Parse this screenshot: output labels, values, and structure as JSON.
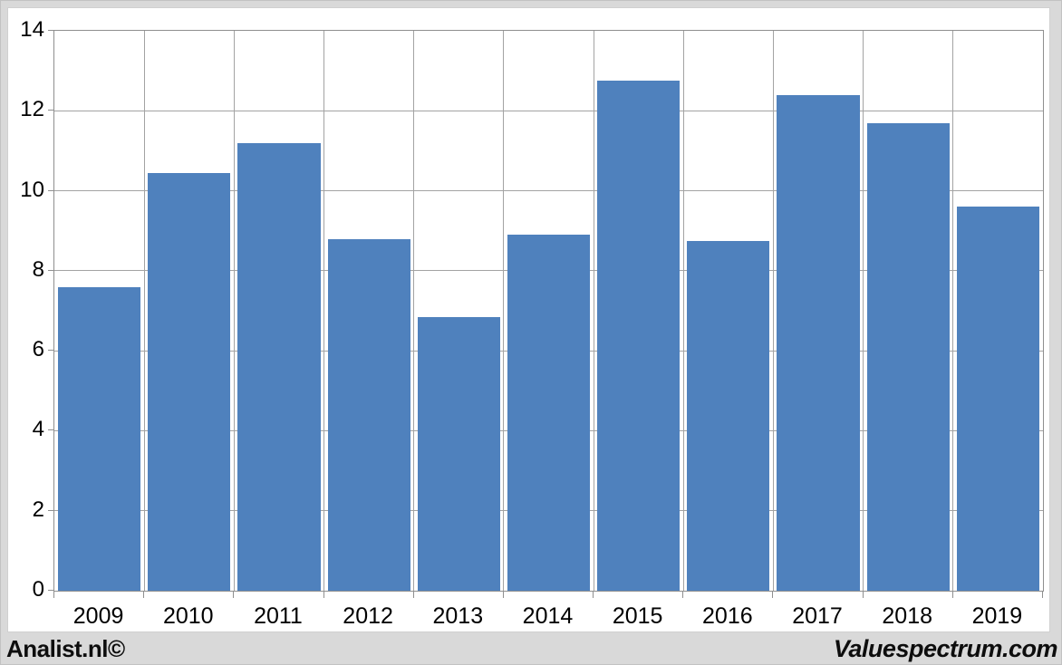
{
  "page": {
    "background_color": "#d9d9d9",
    "panel_color": "#ffffff"
  },
  "footer": {
    "left_text": "Analist.nl©",
    "right_text": "Valuespectrum.com"
  },
  "chart_data": {
    "type": "bar",
    "title": "",
    "xlabel": "",
    "ylabel": "",
    "categories": [
      "2009",
      "2010",
      "2011",
      "2012",
      "2013",
      "2014",
      "2015",
      "2016",
      "2017",
      "2018",
      "2019"
    ],
    "values": [
      7.6,
      10.45,
      11.2,
      8.8,
      6.85,
      8.9,
      12.75,
      8.75,
      12.4,
      11.7,
      9.6
    ],
    "ylim": [
      0,
      14
    ],
    "ytick_step": 2,
    "ytick_labels": [
      "0",
      "2",
      "4",
      "6",
      "8",
      "10",
      "12",
      "14"
    ],
    "grid": true,
    "legend": "none",
    "bar_color": "#4f81bd",
    "gridline_color": "#a3a3a3",
    "axis_color": "#8f8f8f",
    "tick_label_color": "#000000"
  }
}
